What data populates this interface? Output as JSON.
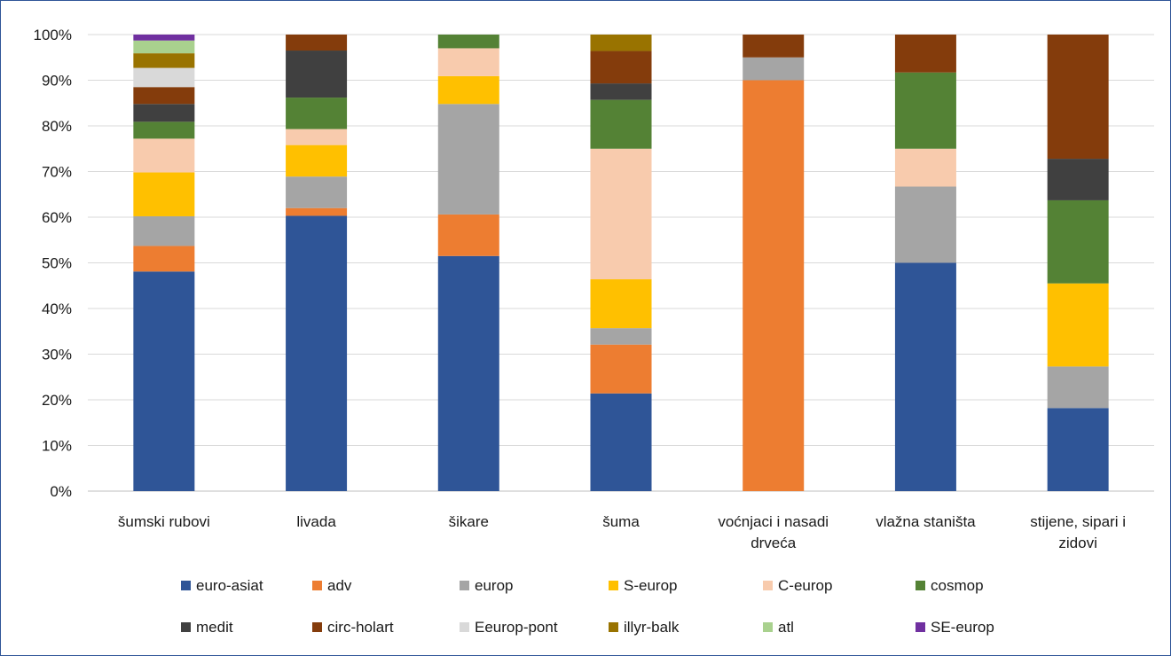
{
  "chart_data": {
    "type": "bar",
    "stacked": true,
    "percent": true,
    "title": "",
    "xlabel": "",
    "ylabel": "",
    "ylim": [
      0,
      100
    ],
    "y_ticks": [
      "0%",
      "10%",
      "20%",
      "30%",
      "40%",
      "50%",
      "60%",
      "70%",
      "80%",
      "90%",
      "100%"
    ],
    "grid": true,
    "legend_position": "bottom",
    "categories": [
      "šumski rubovi",
      "livada",
      "šikare",
      "šuma",
      "voćnjaci i nasadi drveća",
      "vlažna staništa",
      "stijene, sipari i zidovi"
    ],
    "category_lines": [
      [
        "šumski rubovi"
      ],
      [
        "livada"
      ],
      [
        "šikare"
      ],
      [
        "šuma"
      ],
      [
        "voćnjaci i nasadi",
        "drveća"
      ],
      [
        "vlažna staništa"
      ],
      [
        "stijene, sipari i",
        "zidovi"
      ]
    ],
    "series": [
      {
        "name": "euro-asiat",
        "color": "#2f5597",
        "values": [
          48.1,
          60.3,
          51.5,
          21.4,
          0,
          50.0,
          18.2
        ]
      },
      {
        "name": "adv",
        "color": "#ed7d31",
        "values": [
          5.6,
          1.7,
          9.1,
          10.7,
          90.0,
          0,
          0
        ]
      },
      {
        "name": "europ",
        "color": "#a5a5a5",
        "values": [
          6.5,
          6.9,
          24.2,
          3.6,
          5.0,
          16.7,
          9.1
        ]
      },
      {
        "name": "S-europ",
        "color": "#ffc000",
        "values": [
          9.6,
          6.9,
          6.1,
          10.7,
          0,
          0,
          18.2
        ]
      },
      {
        "name": "C-europ",
        "color": "#f8cbad",
        "values": [
          7.4,
          3.5,
          6.1,
          28.6,
          0,
          8.3,
          0
        ]
      },
      {
        "name": "cosmop",
        "color": "#548235",
        "values": [
          3.7,
          6.9,
          3.0,
          10.7,
          0,
          16.7,
          18.2
        ]
      },
      {
        "name": "medit",
        "color": "#404040",
        "values": [
          3.9,
          10.3,
          0,
          3.6,
          0,
          0,
          9.1
        ]
      },
      {
        "name": "circ-holart",
        "color": "#843c0c",
        "values": [
          3.7,
          3.5,
          0,
          7.1,
          5.0,
          8.3,
          27.2
        ]
      },
      {
        "name": "Eeurop-pont",
        "color": "#d9d9d9",
        "values": [
          4.2,
          0,
          0,
          0,
          0,
          0,
          0
        ]
      },
      {
        "name": "illyr-balk",
        "color": "#997300",
        "values": [
          3.2,
          0,
          0,
          3.6,
          0,
          0,
          0
        ]
      },
      {
        "name": "atl",
        "color": "#a9d18e",
        "values": [
          2.8,
          0,
          0,
          0,
          0,
          0,
          0
        ]
      },
      {
        "name": "SE-europ",
        "color": "#7030a0",
        "values": [
          1.3,
          0,
          0,
          0,
          0,
          0,
          0
        ]
      }
    ]
  }
}
